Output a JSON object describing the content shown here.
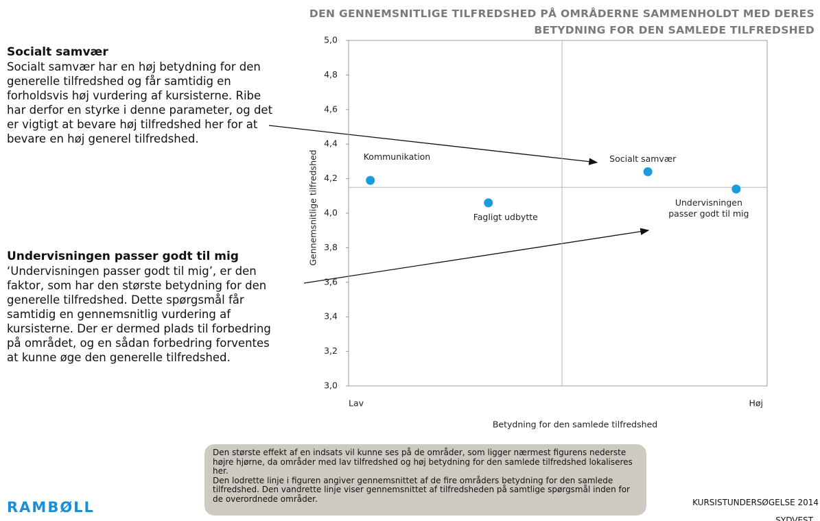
{
  "chart_data": {
    "type": "scatter",
    "title": [
      "DEN GENNEMSNITLIGE TILFREDSHED PÅ OMRÅDERNE SAMMENHOLDT MED DERES",
      "BETYDNING FOR DEN SAMLEDE TILFREDSHED"
    ],
    "x_label": "Betydning for den samlede tilfredshed",
    "y_label": "Gennemsnitlige tilfredshed",
    "xlim": [
      0,
      1
    ],
    "xticks": [
      {
        "value": 0,
        "label": "Lav"
      },
      {
        "value": 1,
        "label": "Høj"
      }
    ],
    "ylim": [
      3.0,
      5.0
    ],
    "yticks": [
      {
        "value": 3.0,
        "label": "3,0"
      },
      {
        "value": 3.2,
        "label": "3,2"
      },
      {
        "value": 3.4,
        "label": "3,4"
      },
      {
        "value": 3.6,
        "label": "3,6"
      },
      {
        "value": 3.8,
        "label": "3,8"
      },
      {
        "value": 4.0,
        "label": "4,0"
      },
      {
        "value": 4.2,
        "label": "4,2"
      },
      {
        "value": 4.4,
        "label": "4,4"
      },
      {
        "value": 4.6,
        "label": "4,6"
      },
      {
        "value": 4.8,
        "label": "4,8"
      },
      {
        "value": 5.0,
        "label": "5,0"
      }
    ],
    "color": "#1a9be0",
    "points": [
      "Kommunikation",
      "Fagligt udbytte",
      "Socialt samvær",
      "Undervisningen passer godt til mig"
    ],
    "x": [
      0.052,
      0.334,
      0.715,
      0.926
    ],
    "values": [
      4.19,
      4.06,
      4.24,
      4.14
    ],
    "hline": 4.15,
    "vline": 0.51
  },
  "notes": [
    {
      "heading": "Socialt samvær",
      "text": "Socialt samvær har en høj betydning for den generelle tilfredshed og får samtidig en forholdsvis høj vurdering af kursisterne. Ribe har derfor en styrke i denne parameter, og det er vigtigt at bevare høj tilfredshed her for at bevare en høj generel tilfredshed."
    },
    {
      "heading": "Undervisningen passer godt til mig",
      "text": "‘Undervisningen passer godt til mig’, er den faktor, som har den største betydning for den generelle tilfredshed. Dette spørgsmål får samtidig en gennemsnitlig vurdering af kursisterne. Der er dermed plads til forbedring på området, og en sådan forbedring forventes at kunne øge den generelle tilfredshed."
    }
  ],
  "footer_box": [
    "Den største effekt af en indsats vil kunne ses på de områder, som ligger nærmest figurens nederste højre hjørne, da områder med lav tilfredshed og høj betydning for den samlede tilfredshed lokaliseres her.",
    "Den lodrette linje i figuren angiver gennemsnittet af de fire områders betydning for den samlede tilfredshed. Den vandrette linje viser gennemsnittet af tilfredsheden på samtlige spørgsmål inden for de overordnede områder."
  ],
  "logo": "RAMBØLL",
  "footer": [
    "KURSISTUNDERSØGELSE 2014",
    "SYDVEST"
  ]
}
